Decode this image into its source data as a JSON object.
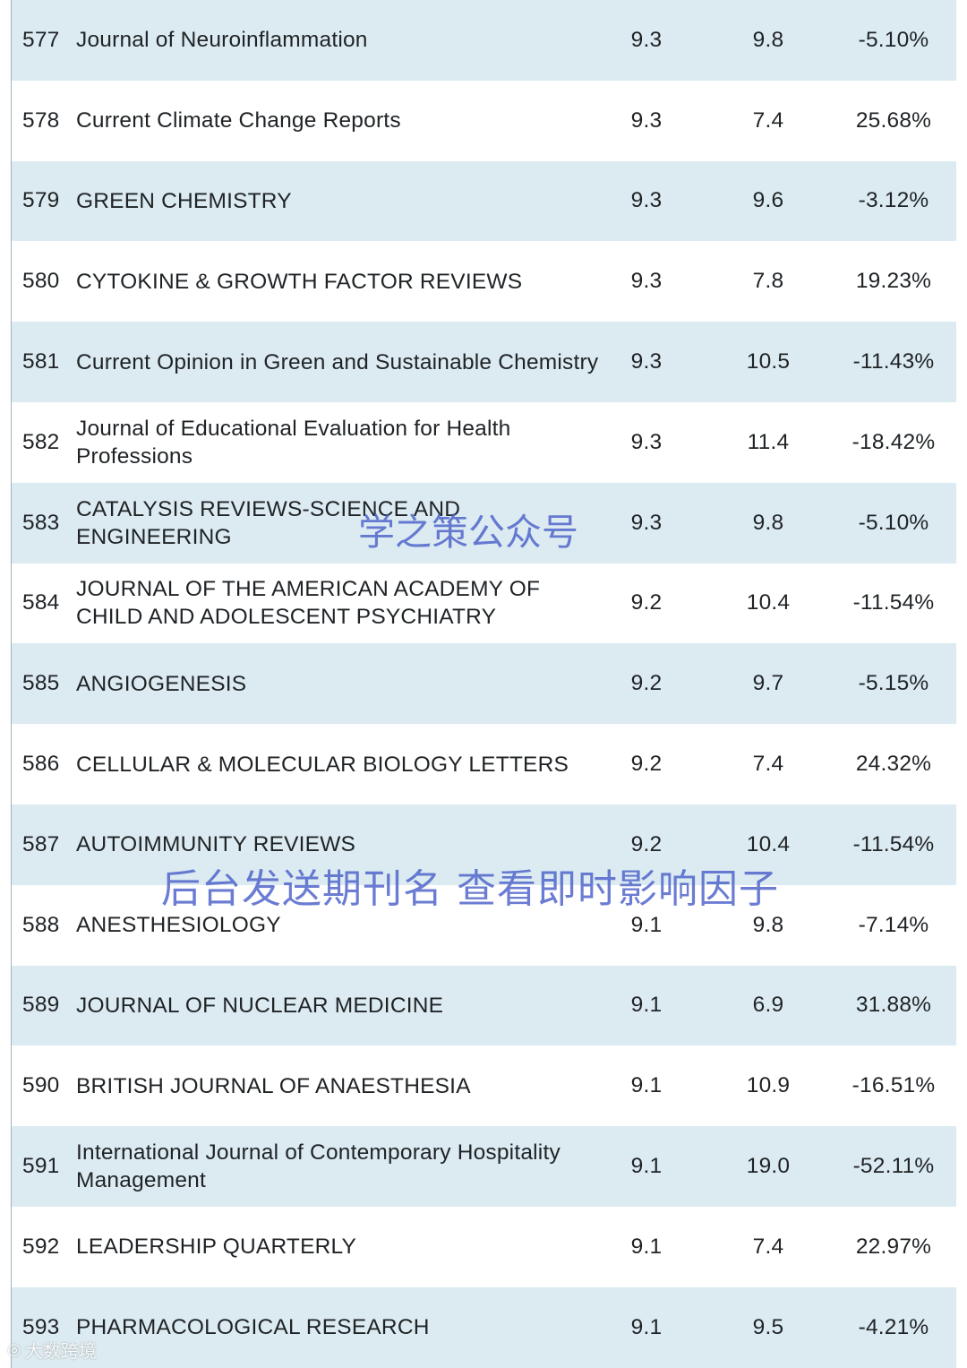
{
  "rows": [
    {
      "rank": "577",
      "name": "Journal of Neuroinflammation",
      "v1": "9.3",
      "v2": "9.8",
      "change": "-5.10%"
    },
    {
      "rank": "578",
      "name": "Current Climate Change Reports",
      "v1": "9.3",
      "v2": "7.4",
      "change": "25.68%"
    },
    {
      "rank": "579",
      "name": "GREEN CHEMISTRY",
      "v1": "9.3",
      "v2": "9.6",
      "change": "-3.12%"
    },
    {
      "rank": "580",
      "name": "CYTOKINE & GROWTH FACTOR REVIEWS",
      "v1": "9.3",
      "v2": "7.8",
      "change": "19.23%"
    },
    {
      "rank": "581",
      "name": "Current Opinion in Green and Sustainable Chemistry",
      "v1": "9.3",
      "v2": "10.5",
      "change": "-11.43%"
    },
    {
      "rank": "582",
      "name": "Journal of Educational Evaluation for Health Professions",
      "v1": "9.3",
      "v2": "11.4",
      "change": "-18.42%"
    },
    {
      "rank": "583",
      "name": "CATALYSIS REVIEWS-SCIENCE AND ENGINEERING",
      "v1": "9.3",
      "v2": "9.8",
      "change": "-5.10%"
    },
    {
      "rank": "584",
      "name": "JOURNAL OF THE AMERICAN ACADEMY OF CHILD AND ADOLESCENT PSYCHIATRY",
      "v1": "9.2",
      "v2": "10.4",
      "change": "-11.54%"
    },
    {
      "rank": "585",
      "name": "ANGIOGENESIS",
      "v1": "9.2",
      "v2": "9.7",
      "change": "-5.15%"
    },
    {
      "rank": "586",
      "name": "CELLULAR & MOLECULAR BIOLOGY LETTERS",
      "v1": "9.2",
      "v2": "7.4",
      "change": "24.32%"
    },
    {
      "rank": "587",
      "name": "AUTOIMMUNITY REVIEWS",
      "v1": "9.2",
      "v2": "10.4",
      "change": "-11.54%"
    },
    {
      "rank": "588",
      "name": "ANESTHESIOLOGY",
      "v1": "9.1",
      "v2": "9.8",
      "change": "-7.14%"
    },
    {
      "rank": "589",
      "name": "JOURNAL OF NUCLEAR MEDICINE",
      "v1": "9.1",
      "v2": "6.9",
      "change": "31.88%"
    },
    {
      "rank": "590",
      "name": "BRITISH JOURNAL OF ANAESTHESIA",
      "v1": "9.1",
      "v2": "10.9",
      "change": "-16.51%"
    },
    {
      "rank": "591",
      "name": "International Journal of Contemporary Hospitality Management",
      "v1": "9.1",
      "v2": "19.0",
      "change": "-52.11%"
    },
    {
      "rank": "592",
      "name": "LEADERSHIP QUARTERLY",
      "v1": "9.1",
      "v2": "7.4",
      "change": "22.97%"
    },
    {
      "rank": "593",
      "name": "PHARMACOLOGICAL RESEARCH",
      "v1": "9.1",
      "v2": "9.5",
      "change": "-4.21%"
    }
  ],
  "watermarks": {
    "top": "学之策公众号",
    "middle": "后台发送期刊名 查看即时影响因子"
  },
  "corner_logo": {
    "icon": "weibo-icon",
    "text": "大数跨境"
  },
  "colors": {
    "shade": "#dcebf1",
    "watermark": "#4b5fc8"
  }
}
